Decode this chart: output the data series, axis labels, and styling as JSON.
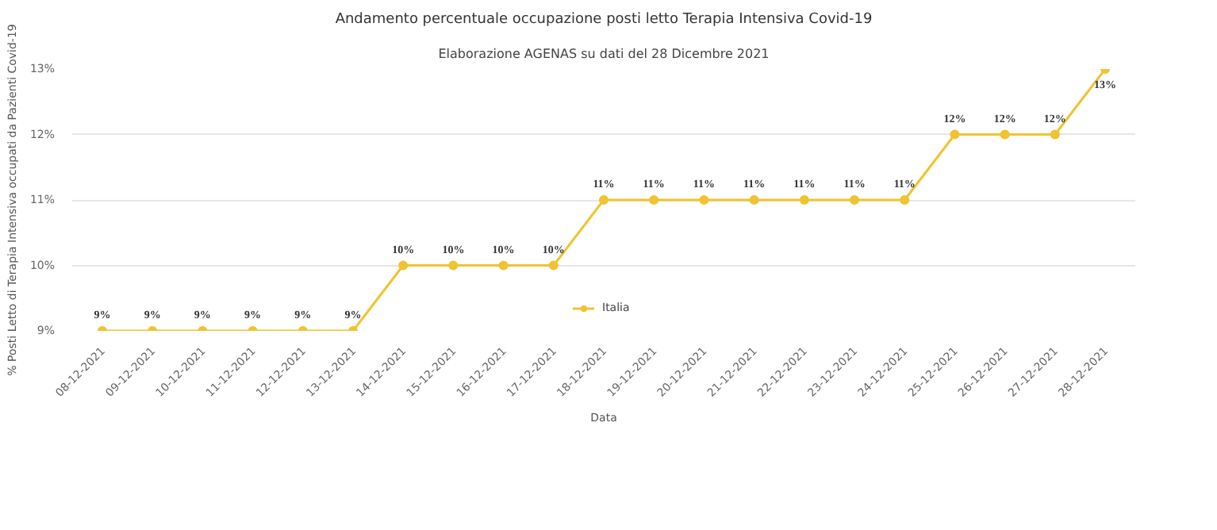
{
  "chart_data": {
    "type": "line",
    "title": "Andamento percentuale occupazione posti letto Terapia Intensiva Covid-19",
    "subtitle": "Elaborazione AGENAS su dati del 28 Dicembre 2021",
    "xlabel": "Data",
    "ylabel": "% Posti Letto di Terapia Intensiva occupati da Pazienti Covid-19",
    "categories": [
      "08-12-2021",
      "09-12-2021",
      "10-12-2021",
      "11-12-2021",
      "12-12-2021",
      "13-12-2021",
      "14-12-2021",
      "15-12-2021",
      "16-12-2021",
      "17-12-2021",
      "18-12-2021",
      "19-12-2021",
      "20-12-2021",
      "21-12-2021",
      "22-12-2021",
      "23-12-2021",
      "24-12-2021",
      "25-12-2021",
      "26-12-2021",
      "27-12-2021",
      "28-12-2021"
    ],
    "series": [
      {
        "name": "Italia",
        "color": "#f0c330",
        "values": [
          9,
          9,
          9,
          9,
          9,
          9,
          10,
          10,
          10,
          10,
          11,
          11,
          11,
          11,
          11,
          11,
          11,
          12,
          12,
          12,
          13
        ],
        "value_labels": [
          "9%",
          "9%",
          "9%",
          "9%",
          "9%",
          "9%",
          "10%",
          "10%",
          "10%",
          "10%",
          "11%",
          "11%",
          "11%",
          "11%",
          "11%",
          "11%",
          "11%",
          "12%",
          "12%",
          "12%",
          "13%"
        ]
      }
    ],
    "ylim": [
      9,
      13
    ],
    "yticks": [
      {
        "value": 9,
        "label": "9%"
      },
      {
        "value": 10,
        "label": "10%"
      },
      {
        "value": 11,
        "label": "11%"
      },
      {
        "value": 12,
        "label": "12%"
      },
      {
        "value": 13,
        "label": "13%"
      }
    ],
    "grid": "y",
    "legend": "bottom",
    "marker": "circle",
    "line_style": "solid"
  }
}
